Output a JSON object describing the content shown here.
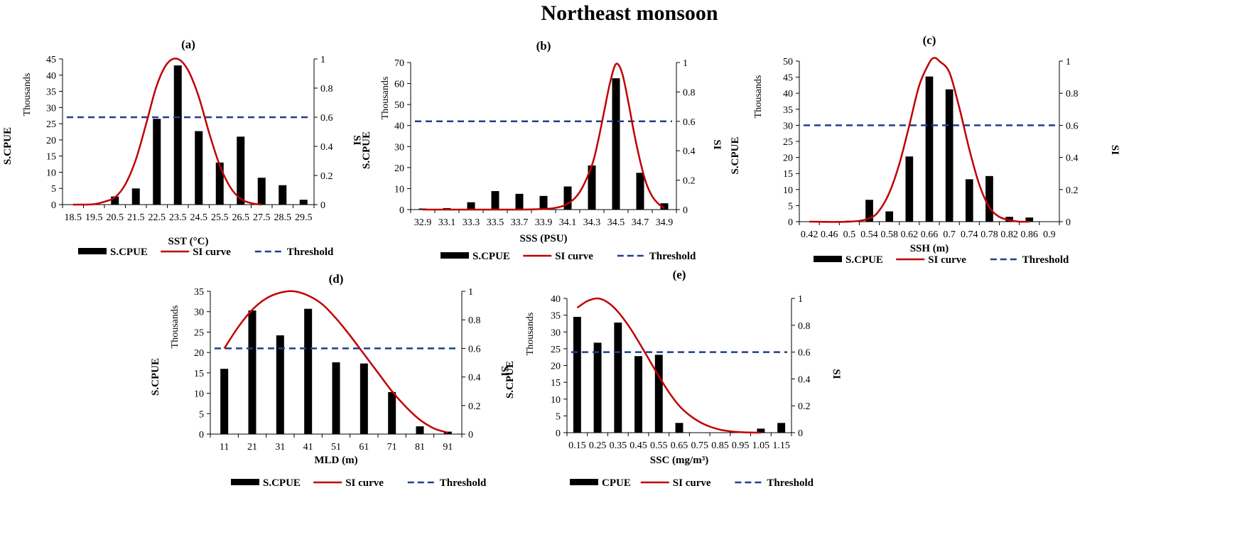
{
  "figure": {
    "title": "Northeast monsoon"
  },
  "colors": {
    "bar": "#000000",
    "si_curve": "#c00000",
    "threshold": "#1f3f8f",
    "axis": "#000000"
  },
  "chart_data": [
    {
      "id": "a",
      "type": "bar",
      "title": "(a)",
      "xlabel": "SST (°C)",
      "ylabel": "S.CPUE",
      "y_unit_label": "Thousands",
      "y2label": "SI",
      "categories": [
        "18.5",
        "19.5",
        "20.5",
        "21.5",
        "22.5",
        "23.5",
        "24.5",
        "25.5",
        "26.5",
        "27.5",
        "28.5",
        "29.5"
      ],
      "ylim": [
        0,
        45
      ],
      "yticks": [
        0,
        5,
        10,
        15,
        20,
        25,
        30,
        35,
        40,
        45
      ],
      "y2lim": [
        0,
        1
      ],
      "y2ticks": [
        0,
        0.2,
        0.4,
        0.6,
        0.8,
        1
      ],
      "series": [
        {
          "name": "S.CPUE",
          "kind": "bar",
          "values": [
            0,
            0,
            2.5,
            5,
            26.5,
            43,
            22.7,
            13,
            21,
            8.3,
            6,
            1.5
          ]
        },
        {
          "name": "SI curve",
          "kind": "line",
          "axis": "y2",
          "x": [
            18.5,
            19,
            19.5,
            20,
            20.5,
            21,
            21.5,
            22,
            22.5,
            23,
            23.5,
            24,
            24.5,
            25,
            25.5,
            26,
            26.5,
            27,
            27.5
          ],
          "y": [
            0,
            0,
            0.003,
            0.02,
            0.05,
            0.14,
            0.31,
            0.56,
            0.82,
            0.97,
            1,
            0.92,
            0.74,
            0.49,
            0.27,
            0.12,
            0.04,
            0.01,
            0
          ]
        },
        {
          "name": "Threshold",
          "kind": "hline",
          "axis": "y2",
          "value": 0.6
        }
      ],
      "legend": [
        "S.CPUE",
        "SI curve",
        "Threshold"
      ]
    },
    {
      "id": "b",
      "type": "bar",
      "title": "(b)",
      "xlabel": "SSS (PSU)",
      "ylabel": "S.CPUE",
      "y_unit_label": "Thousands",
      "y2label": "SI",
      "categories": [
        "32.9",
        "33.1",
        "33.3",
        "33.5",
        "33.7",
        "33.9",
        "34.1",
        "34.3",
        "34.5",
        "34.7",
        "34.9"
      ],
      "ylim": [
        0,
        70
      ],
      "yticks": [
        0,
        10,
        20,
        30,
        40,
        50,
        60,
        70
      ],
      "y2lim": [
        0,
        1
      ],
      "y2ticks": [
        0,
        0.2,
        0.4,
        0.6,
        0.8,
        1
      ],
      "series": [
        {
          "name": "S.CPUE",
          "kind": "bar",
          "values": [
            0.5,
            0.7,
            3.5,
            8.8,
            7.5,
            6.5,
            11,
            21,
            62.5,
            17.5,
            3
          ]
        },
        {
          "name": "SI curve",
          "kind": "line",
          "axis": "y2",
          "x": [
            32.9,
            33.3,
            33.7,
            33.9,
            34.0,
            34.1,
            34.2,
            34.3,
            34.35,
            34.4,
            34.45,
            34.5,
            34.55,
            34.6,
            34.65,
            34.7,
            34.75,
            34.8,
            34.85,
            34.9
          ],
          "y": [
            0,
            0,
            0,
            0.004,
            0.012,
            0.04,
            0.12,
            0.3,
            0.46,
            0.66,
            0.86,
            0.99,
            0.93,
            0.74,
            0.52,
            0.33,
            0.18,
            0.09,
            0.04,
            0.01
          ]
        },
        {
          "name": "Threshold",
          "kind": "hline",
          "axis": "y2",
          "value": 0.6
        }
      ],
      "legend": [
        "S.CPUE",
        "SI curve",
        "Threshold"
      ]
    },
    {
      "id": "c",
      "type": "bar",
      "title": "(c)",
      "xlabel": "SSH (m)",
      "ylabel": "S.CPUE",
      "y_unit_label": "Thousands",
      "y2label": "SI",
      "categories": [
        "0.42",
        "0.46",
        "0.5",
        "0.54",
        "0.58",
        "0.62",
        "0.66",
        "0.7",
        "0.74",
        "0.78",
        "0.82",
        "0.86",
        "0.9"
      ],
      "ylim": [
        0,
        50
      ],
      "yticks": [
        0,
        5,
        10,
        15,
        20,
        25,
        30,
        35,
        40,
        45,
        50
      ],
      "y2lim": [
        0,
        1
      ],
      "y2ticks": [
        0,
        0.2,
        0.4,
        0.6,
        0.8,
        1
      ],
      "series": [
        {
          "name": "S.CPUE",
          "kind": "bar",
          "values": [
            0,
            0,
            0.3,
            6.8,
            3.2,
            20.3,
            45.2,
            41.2,
            13.2,
            14.2,
            1.5,
            1.3,
            0
          ]
        },
        {
          "name": "SI curve",
          "kind": "line",
          "axis": "y2",
          "x": [
            0.42,
            0.5,
            0.54,
            0.56,
            0.58,
            0.6,
            0.62,
            0.64,
            0.66,
            0.67,
            0.68,
            0.7,
            0.72,
            0.74,
            0.76,
            0.78,
            0.8,
            0.82,
            0.84,
            0.86
          ],
          "y": [
            0,
            0,
            0.02,
            0.07,
            0.18,
            0.36,
            0.6,
            0.85,
            0.99,
            1.02,
            1,
            0.93,
            0.71,
            0.45,
            0.23,
            0.09,
            0.03,
            0.01,
            0,
            0
          ]
        },
        {
          "name": "Threshold",
          "kind": "hline",
          "axis": "y2",
          "value": 0.6
        }
      ],
      "legend": [
        "S.CPUE",
        "SI curve",
        "Threshold"
      ]
    },
    {
      "id": "d",
      "type": "bar",
      "title": "(d)",
      "xlabel": "MLD (m)",
      "ylabel": "S.CPUE",
      "y_unit_label": "Thousands",
      "y2label": "SI",
      "categories": [
        "11",
        "21",
        "31",
        "41",
        "51",
        "61",
        "71",
        "81",
        "91"
      ],
      "ylim": [
        0,
        35
      ],
      "yticks": [
        0,
        5,
        10,
        15,
        20,
        25,
        30,
        35
      ],
      "y2lim": [
        0,
        1
      ],
      "y2ticks": [
        0,
        0.2,
        0.4,
        0.6,
        0.8,
        1
      ],
      "series": [
        {
          "name": "S.CPUE",
          "kind": "bar",
          "values": [
            16,
            30.3,
            24.2,
            30.7,
            17.6,
            17.3,
            10.3,
            1.9,
            0.6
          ]
        },
        {
          "name": "SI curve",
          "kind": "line",
          "axis": "y2",
          "x": [
            11,
            16,
            21,
            26,
            31,
            36,
            41,
            46,
            51,
            56,
            61,
            66,
            71,
            76,
            81,
            86,
            91
          ],
          "y": [
            0.6,
            0.75,
            0.87,
            0.95,
            0.99,
            1,
            0.97,
            0.91,
            0.81,
            0.69,
            0.56,
            0.43,
            0.3,
            0.19,
            0.1,
            0.04,
            0.01
          ]
        },
        {
          "name": "Threshold",
          "kind": "hline",
          "axis": "y2",
          "value": 0.6
        }
      ],
      "legend": [
        "S.CPUE",
        "SI curve",
        "Threshold"
      ]
    },
    {
      "id": "e",
      "type": "bar",
      "title": "(e)",
      "xlabel": "SSC (mg/m³)",
      "ylabel": "S.CPUE",
      "y_unit_label": "Thousands",
      "y2label": "SI",
      "categories": [
        "0.15",
        "0.25",
        "0.35",
        "0.45",
        "0.55",
        "0.65",
        "0.75",
        "0.85",
        "0.95",
        "1.05",
        "1.15"
      ],
      "ylim": [
        0,
        40
      ],
      "yticks": [
        0,
        5,
        10,
        15,
        20,
        25,
        30,
        35,
        40
      ],
      "y2lim": [
        0,
        1
      ],
      "y2ticks": [
        0,
        0.2,
        0.4,
        0.6,
        0.8,
        1
      ],
      "series": [
        {
          "name": "CPUE",
          "kind": "bar",
          "values": [
            34.5,
            26.8,
            32.8,
            22.8,
            23.2,
            2.9,
            0,
            0,
            0,
            1.2,
            2.9
          ]
        },
        {
          "name": "SI curve",
          "kind": "line",
          "axis": "y2",
          "x": [
            0.15,
            0.2,
            0.25,
            0.3,
            0.35,
            0.4,
            0.45,
            0.5,
            0.55,
            0.6,
            0.65,
            0.7,
            0.75,
            0.8,
            0.85,
            0.9,
            0.95,
            1.0,
            1.05
          ],
          "y": [
            0.93,
            0.98,
            1,
            0.97,
            0.9,
            0.8,
            0.68,
            0.55,
            0.42,
            0.3,
            0.2,
            0.13,
            0.08,
            0.045,
            0.022,
            0.01,
            0.004,
            0.001,
            0
          ]
        },
        {
          "name": "Threshold",
          "kind": "hline",
          "axis": "y2",
          "value": 0.6
        }
      ],
      "legend": [
        "CPUE",
        "SI curve",
        "Threshold"
      ]
    }
  ]
}
